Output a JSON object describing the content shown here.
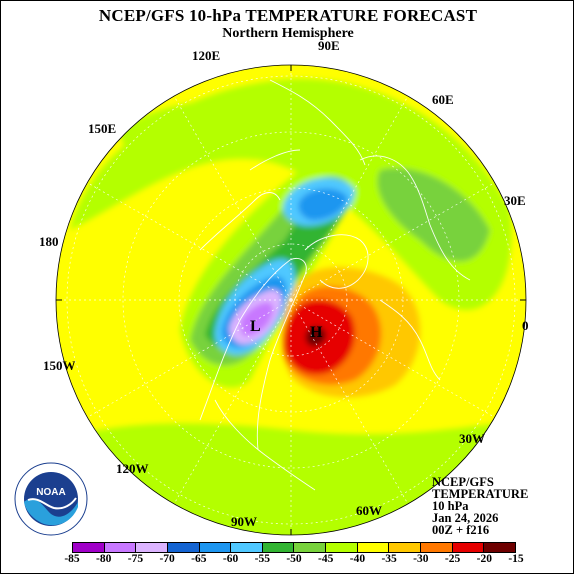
{
  "title": "NCEP/GFS 10-hPa TEMPERATURE FORECAST",
  "subtitle": "Northern Hemisphere",
  "lon_labels": {
    "e90": "90E",
    "e120": "120E",
    "e60": "60E",
    "e150": "150E",
    "e30": "30E",
    "l180": "180",
    "l0": "0",
    "w150": "150W",
    "w30": "30W",
    "w120": "120W",
    "w90": "90W",
    "w60": "60W"
  },
  "centers": {
    "low": "L",
    "high": "H"
  },
  "info": {
    "line1": "NCEP/GFS",
    "line2": "TEMPERATURE",
    "line3": "10 hPa",
    "line4": "Jan 24, 2026",
    "line5": "00Z + f216"
  },
  "logo": {
    "icon": "noaa-logo-icon",
    "text": "NOAA"
  },
  "colorbar": {
    "labels": [
      "-85",
      "-80",
      "-75",
      "-70",
      "-65",
      "-60",
      "-55",
      "-50",
      "-45",
      "-40",
      "-35",
      "-30",
      "-25",
      "-20",
      "-15"
    ],
    "colors": [
      "#a000c8",
      "#c878ff",
      "#dcb4ff",
      "#1464d2",
      "#1e96f0",
      "#50c8ff",
      "#32b432",
      "#78d23c",
      "#b4ff00",
      "#ffff00",
      "#ffc800",
      "#ff7800",
      "#e60000",
      "#6e0000"
    ]
  }
}
